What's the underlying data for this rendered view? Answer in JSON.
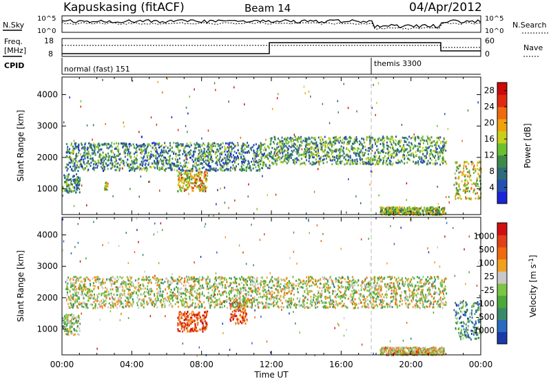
{
  "header": {
    "station": "Kapuskasing (fitACF)",
    "beam": "Beam 14",
    "date": "04/Apr/2012"
  },
  "side_labels": {
    "nsky": "N.Sky",
    "nsearch": "N.Search",
    "freq_line1": "Freq.",
    "freq_line2": "[MHz]",
    "nave": "Nave",
    "cpid": "CPID"
  },
  "noise_panel": {
    "left_ticks": [
      "10^5",
      "10^0"
    ],
    "right_ticks": [
      "10^5",
      "10^0"
    ]
  },
  "freq_panel": {
    "left_ticks": [
      "18",
      "8"
    ],
    "right_ticks": [
      "60",
      "0"
    ]
  },
  "cpid_panel": {
    "programs": [
      {
        "name": "normal (fast)",
        "id": "151"
      },
      {
        "name": "themis",
        "id": "3300"
      }
    ]
  },
  "colors": {
    "power": [
      "#1a24d8",
      "#2450b4",
      "#2f6b78",
      "#3f8a4a",
      "#6cbf2f",
      "#c8cf1a",
      "#f0a20c",
      "#f06a10",
      "#e02a10",
      "#cc0a0a"
    ],
    "velocity": [
      "#1a3aa8",
      "#2a6ac0",
      "#3a8a6a",
      "#4ca83a",
      "#7cc444",
      "#c8c8c8",
      "#f0a020",
      "#f06a10",
      "#e0401a",
      "#d01010"
    ]
  },
  "chart_data": [
    {
      "type": "heatmap",
      "name": "power",
      "x_ticks": [
        "00:00",
        "04:00",
        "08:00",
        "12:00",
        "16:00",
        "20:00",
        "00:00"
      ],
      "xlim_hours": [
        0,
        24
      ],
      "ylabel": "Slant Range [km]",
      "y_ticks": [
        1000,
        2000,
        3000,
        4000
      ],
      "ylim": [
        180,
        4560
      ],
      "colorbar_label": "Power [dB]",
      "colorbar_ticks": [
        4,
        8,
        12,
        16,
        20,
        24,
        28
      ],
      "colorbar_range": [
        0,
        30
      ],
      "echo_regions": [
        {
          "t": [
            0.0,
            1.0
          ],
          "range_km": [
            900,
            1500
          ],
          "level": 0.3
        },
        {
          "t": [
            2.4,
            2.6
          ],
          "range_km": [
            1000,
            1250
          ],
          "level": 0.6
        },
        {
          "t": [
            6.6,
            8.3
          ],
          "range_km": [
            950,
            1600
          ],
          "level": 0.6
        },
        {
          "t": [
            0.2,
            11.9
          ],
          "range_km": [
            1600,
            2500
          ],
          "level": 0.3
        },
        {
          "t": [
            11.9,
            22.0
          ],
          "range_km": [
            1800,
            2700
          ],
          "level": 0.35
        },
        {
          "t": [
            22.5,
            24.0
          ],
          "range_km": [
            700,
            1900
          ],
          "level": 0.55
        },
        {
          "t": [
            18.2,
            21.9
          ],
          "range_km": [
            200,
            450
          ],
          "level": 0.45
        }
      ]
    },
    {
      "type": "heatmap",
      "name": "velocity",
      "x_ticks": [
        "00:00",
        "04:00",
        "08:00",
        "12:00",
        "16:00",
        "20:00",
        "00:00"
      ],
      "xlim_hours": [
        0,
        24
      ],
      "xlabel": "Time UT",
      "ylabel": "Slant Range [km]",
      "y_ticks": [
        1000,
        2000,
        3000,
        4000
      ],
      "ylim": [
        180,
        4560
      ],
      "colorbar_label": "Velocity [m s^-1]",
      "colorbar_ticks": [
        "1000",
        "500",
        "100",
        "25",
        "-25",
        "-100",
        "-500",
        "-1000"
      ],
      "echo_regions": [
        {
          "t": [
            0.0,
            1.0
          ],
          "range_km": [
            850,
            1500
          ],
          "level": 0.45
        },
        {
          "t": [
            6.6,
            8.3
          ],
          "range_km": [
            950,
            1600
          ],
          "level": 0.85
        },
        {
          "t": [
            9.6,
            10.6
          ],
          "range_km": [
            1200,
            2000
          ],
          "level": 0.85
        },
        {
          "t": [
            0.2,
            22.0
          ],
          "range_km": [
            1700,
            2700
          ],
          "level": 0.5
        },
        {
          "t": [
            22.5,
            24.0
          ],
          "range_km": [
            700,
            1900
          ],
          "level": 0.3
        },
        {
          "t": [
            18.2,
            21.9
          ],
          "range_km": [
            200,
            450
          ],
          "level": 0.6
        }
      ]
    }
  ]
}
